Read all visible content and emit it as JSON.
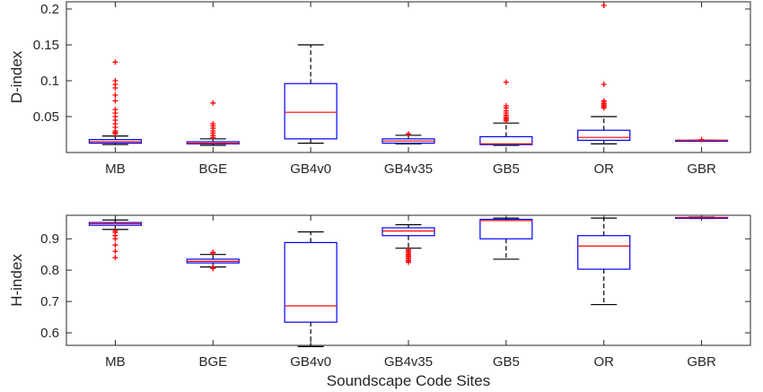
{
  "chart_data": [
    {
      "type": "box",
      "ylabel": "D-index",
      "xlabel": "",
      "ylim": [
        0,
        0.21
      ],
      "yticks": [
        0.05,
        0.1,
        0.15,
        0.2
      ],
      "ytick_labels": [
        "0.05",
        "0.1",
        "0.15",
        "0.2"
      ],
      "categories": [
        "MB",
        "BGE",
        "GB4v0",
        "GB4v35",
        "GB5",
        "OR",
        "GBR"
      ],
      "boxes": [
        {
          "whisker_low": 0.011,
          "q1": 0.013,
          "median": 0.015,
          "q3": 0.018,
          "whisker_high": 0.023,
          "outliers": [
            0.126,
            0.1,
            0.095,
            0.09,
            0.08,
            0.072,
            0.06,
            0.055,
            0.05,
            0.045,
            0.04,
            0.035,
            0.03,
            0.028,
            0.026
          ]
        },
        {
          "whisker_low": 0.01,
          "q1": 0.012,
          "median": 0.013,
          "q3": 0.015,
          "whisker_high": 0.019,
          "outliers": [
            0.069,
            0.04,
            0.037,
            0.034,
            0.03,
            0.027,
            0.024,
            0.021
          ]
        },
        {
          "whisker_low": 0.013,
          "q1": 0.019,
          "median": 0.056,
          "q3": 0.096,
          "whisker_high": 0.15,
          "outliers": []
        },
        {
          "whisker_low": 0.012,
          "q1": 0.013,
          "median": 0.016,
          "q3": 0.019,
          "whisker_high": 0.024,
          "outliers": [
            0.026
          ]
        },
        {
          "whisker_low": 0.01,
          "q1": 0.011,
          "median": 0.012,
          "q3": 0.022,
          "whisker_high": 0.041,
          "outliers": [
            0.098,
            0.065,
            0.062,
            0.058,
            0.055,
            0.052,
            0.05,
            0.048,
            0.046,
            0.044
          ]
        },
        {
          "whisker_low": 0.012,
          "q1": 0.017,
          "median": 0.021,
          "q3": 0.031,
          "whisker_high": 0.05,
          "outliers": [
            0.205,
            0.095,
            0.072,
            0.07,
            0.068,
            0.066,
            0.064,
            0.062
          ]
        },
        {
          "whisker_low": 0.016,
          "q1": 0.016,
          "median": 0.017,
          "q3": 0.017,
          "whisker_high": 0.017,
          "outliers": [
            0.018
          ]
        }
      ],
      "grid": false,
      "box_color": "#0000ff",
      "median_color": "#ff0000",
      "outlier_color": "#ff0000"
    },
    {
      "type": "box",
      "ylabel": "H-index",
      "xlabel": "Soundscape Code Sites",
      "ylim": [
        0.56,
        0.975
      ],
      "yticks": [
        0.6,
        0.7,
        0.8,
        0.9
      ],
      "ytick_labels": [
        "0.6",
        "0.7",
        "0.8",
        "0.9"
      ],
      "categories": [
        "MB",
        "BGE",
        "GB4v0",
        "GB4v35",
        "GB5",
        "OR",
        "GBR"
      ],
      "boxes": [
        {
          "whisker_low": 0.93,
          "q1": 0.943,
          "median": 0.948,
          "q3": 0.952,
          "whisker_high": 0.96,
          "outliers": [
            0.925,
            0.92,
            0.91,
            0.9,
            0.88,
            0.86,
            0.84
          ]
        },
        {
          "whisker_low": 0.81,
          "q1": 0.823,
          "median": 0.828,
          "q3": 0.835,
          "whisker_high": 0.85,
          "outliers": [
            0.857,
            0.855,
            0.808,
            0.805
          ]
        },
        {
          "whisker_low": 0.556,
          "q1": 0.634,
          "median": 0.686,
          "q3": 0.888,
          "whisker_high": 0.922,
          "outliers": []
        },
        {
          "whisker_low": 0.87,
          "q1": 0.91,
          "median": 0.925,
          "q3": 0.935,
          "whisker_high": 0.945,
          "outliers": [
            0.865,
            0.86,
            0.855,
            0.85,
            0.845,
            0.84,
            0.835,
            0.83,
            0.825
          ]
        },
        {
          "whisker_low": 0.835,
          "q1": 0.9,
          "median": 0.958,
          "q3": 0.962,
          "whisker_high": 0.966,
          "outliers": []
        },
        {
          "whisker_low": 0.69,
          "q1": 0.803,
          "median": 0.877,
          "q3": 0.91,
          "whisker_high": 0.966,
          "outliers": []
        },
        {
          "whisker_low": 0.965,
          "q1": 0.966,
          "median": 0.967,
          "q3": 0.968,
          "whisker_high": 0.969,
          "outliers": []
        }
      ],
      "grid": false,
      "box_color": "#0000ff",
      "median_color": "#ff0000",
      "outlier_color": "#ff0000"
    }
  ]
}
